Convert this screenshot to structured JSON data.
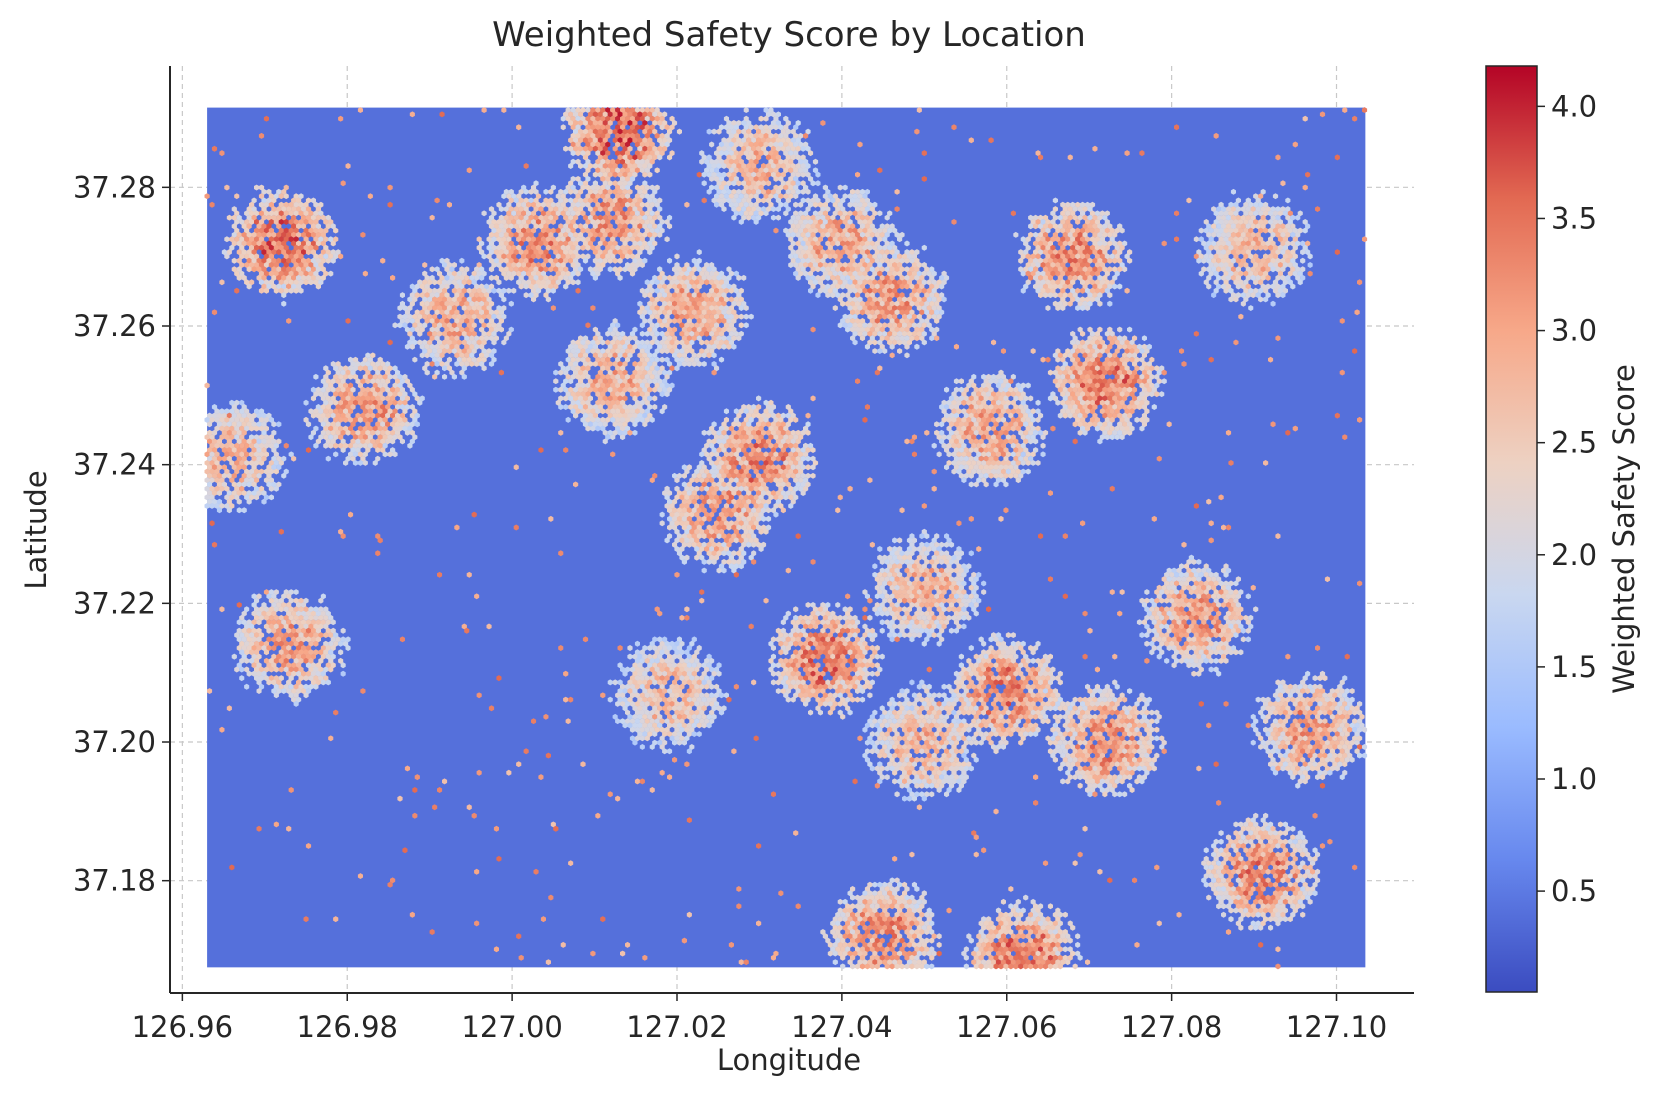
{
  "chart_data": {
    "type": "heatmap",
    "subtype": "hexbin",
    "title": "Weighted Safety Score by Location",
    "xlabel": "Longitude",
    "ylabel": "Latitude",
    "xlim": [
      126.9585,
      127.1094
    ],
    "ylim": [
      37.1638,
      37.2975
    ],
    "x_ticks": [
      126.96,
      126.98,
      127.0,
      127.02,
      127.04,
      127.06,
      127.08,
      127.1
    ],
    "x_tick_labels": [
      "126.96",
      "126.98",
      "127.00",
      "127.02",
      "127.04",
      "127.06",
      "127.08",
      "127.10"
    ],
    "y_ticks": [
      37.18,
      37.2,
      37.22,
      37.24,
      37.26,
      37.28
    ],
    "y_tick_labels": [
      "37.18",
      "37.20",
      "37.22",
      "37.24",
      "37.26",
      "37.28"
    ],
    "data_extent": {
      "x": [
        126.963,
        127.1035
      ],
      "y": [
        37.1675,
        37.2915
      ]
    },
    "grid": true,
    "colorbar": {
      "label": "Weighted Safety Score",
      "range": [
        0.05,
        4.18
      ],
      "ticks": [
        0.5,
        1.0,
        1.5,
        2.0,
        2.5,
        3.0,
        3.5,
        4.0
      ],
      "tick_labels": [
        "0.5",
        "1.0",
        "1.5",
        "2.0",
        "2.5",
        "3.0",
        "3.5",
        "4.0"
      ],
      "colormap": "coolwarm",
      "colors": [
        "#3b4cc0",
        "#6788ee",
        "#9abbff",
        "#c9d7f0",
        "#edd1c2",
        "#f7a889",
        "#e26952",
        "#b40426"
      ]
    },
    "background_score": 0.4,
    "clusters": [
      {
        "lon": 126.972,
        "lat": 37.272,
        "score": 3.7
      },
      {
        "lon": 126.982,
        "lat": 37.248,
        "score": 3.3
      },
      {
        "lon": 126.993,
        "lat": 37.261,
        "score": 3.1
      },
      {
        "lon": 126.966,
        "lat": 37.241,
        "score": 3.0
      },
      {
        "lon": 126.973,
        "lat": 37.214,
        "score": 3.2
      },
      {
        "lon": 127.003,
        "lat": 37.272,
        "score": 3.4
      },
      {
        "lon": 127.012,
        "lat": 37.275,
        "score": 3.3
      },
      {
        "lon": 127.013,
        "lat": 37.288,
        "score": 3.8
      },
      {
        "lon": 127.022,
        "lat": 37.262,
        "score": 3.2
      },
      {
        "lon": 127.012,
        "lat": 37.252,
        "score": 3.1
      },
      {
        "lon": 127.03,
        "lat": 37.283,
        "score": 3.0
      },
      {
        "lon": 127.04,
        "lat": 37.272,
        "score": 3.1
      },
      {
        "lon": 127.046,
        "lat": 37.264,
        "score": 3.3
      },
      {
        "lon": 127.03,
        "lat": 37.241,
        "score": 3.5
      },
      {
        "lon": 127.025,
        "lat": 37.233,
        "score": 3.3
      },
      {
        "lon": 127.038,
        "lat": 37.212,
        "score": 3.6
      },
      {
        "lon": 127.05,
        "lat": 37.222,
        "score": 3.0
      },
      {
        "lon": 127.058,
        "lat": 37.245,
        "score": 3.2
      },
      {
        "lon": 127.06,
        "lat": 37.207,
        "score": 3.5
      },
      {
        "lon": 127.072,
        "lat": 37.2,
        "score": 3.4
      },
      {
        "lon": 127.072,
        "lat": 37.252,
        "score": 3.6
      },
      {
        "lon": 127.068,
        "lat": 37.27,
        "score": 3.4
      },
      {
        "lon": 127.05,
        "lat": 37.2,
        "score": 3.0
      },
      {
        "lon": 127.045,
        "lat": 37.172,
        "score": 3.4
      },
      {
        "lon": 127.062,
        "lat": 37.169,
        "score": 3.6
      },
      {
        "lon": 127.083,
        "lat": 37.218,
        "score": 3.3
      },
      {
        "lon": 127.091,
        "lat": 37.181,
        "score": 3.5
      },
      {
        "lon": 127.097,
        "lat": 37.202,
        "score": 3.3
      },
      {
        "lon": 127.09,
        "lat": 37.271,
        "score": 3.0
      },
      {
        "lon": 127.019,
        "lat": 37.207,
        "score": 2.9
      }
    ]
  }
}
